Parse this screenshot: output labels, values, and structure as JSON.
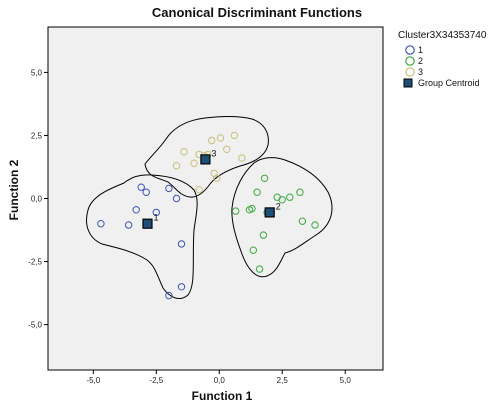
{
  "chart_data": {
    "type": "scatter",
    "title": "Canonical Discriminant Functions",
    "xlabel": "Function 1",
    "ylabel": "Function 2",
    "xlim": [
      -6.8,
      6.5
    ],
    "ylim": [
      -6.8,
      6.8
    ],
    "xticks": [
      -5,
      -2.5,
      0,
      2.5,
      5
    ],
    "yticks": [
      -5,
      -2.5,
      0,
      2.5,
      5
    ],
    "xtick_labels": [
      "-5,0",
      "-2,5",
      "0,0",
      "2,5",
      "5,0"
    ],
    "ytick_labels": [
      "-5,0",
      "-2,5",
      "0,0",
      "2,5",
      "5,0"
    ],
    "grid": false,
    "legend_position": "outside-right",
    "legend_title": "Cluster3X34353740",
    "plot_background": "#f0f0f0",
    "series": [
      {
        "name": "1",
        "color": "#3e55b8",
        "marker": "open-circle",
        "points": [
          [
            -4.7,
            -1.0
          ],
          [
            -3.6,
            -1.05
          ],
          [
            -3.3,
            -0.45
          ],
          [
            -3.1,
            0.45
          ],
          [
            -2.9,
            0.25
          ],
          [
            -2.5,
            -0.55
          ],
          [
            -2.0,
            0.4
          ],
          [
            -1.7,
            0.0
          ],
          [
            -1.5,
            -1.8
          ],
          [
            -1.5,
            -3.5
          ],
          [
            -2.0,
            -3.85
          ]
        ]
      },
      {
        "name": "2",
        "color": "#3daa3d",
        "marker": "open-circle",
        "points": [
          [
            0.65,
            -0.5
          ],
          [
            1.2,
            -0.45
          ],
          [
            1.3,
            -0.4
          ],
          [
            1.5,
            0.25
          ],
          [
            1.8,
            0.8
          ],
          [
            1.9,
            -0.55
          ],
          [
            2.3,
            0.05
          ],
          [
            2.5,
            -0.05
          ],
          [
            2.8,
            0.05
          ],
          [
            3.2,
            0.25
          ],
          [
            3.3,
            -0.9
          ],
          [
            3.8,
            -1.05
          ],
          [
            1.75,
            -1.45
          ],
          [
            1.35,
            -2.05
          ],
          [
            1.6,
            -2.8
          ]
        ]
      },
      {
        "name": "3",
        "color": "#c8c07a",
        "marker": "open-circle",
        "points": [
          [
            -1.7,
            1.3
          ],
          [
            -1.4,
            1.85
          ],
          [
            -1.0,
            1.4
          ],
          [
            -0.8,
            1.75
          ],
          [
            -0.6,
            1.7
          ],
          [
            -0.45,
            1.75
          ],
          [
            -0.3,
            2.3
          ],
          [
            -0.2,
            1.0
          ],
          [
            -0.1,
            0.8
          ],
          [
            0.05,
            2.4
          ],
          [
            0.3,
            1.95
          ],
          [
            0.6,
            2.5
          ],
          [
            0.9,
            1.6
          ],
          [
            -0.8,
            0.35
          ]
        ]
      }
    ],
    "centroids": {
      "name": "Group Centroid",
      "color": "#1f4e79",
      "marker": "filled-square",
      "points": [
        {
          "label": "1",
          "x": -2.85,
          "y": -1.0
        },
        {
          "label": "2",
          "x": 2.0,
          "y": -0.55
        },
        {
          "label": "3",
          "x": -0.55,
          "y": 1.55
        }
      ]
    },
    "legend": [
      {
        "label": "1",
        "marker": "open-circle",
        "color": "#3e55b8"
      },
      {
        "label": "2",
        "marker": "open-circle",
        "color": "#3daa3d"
      },
      {
        "label": "3",
        "marker": "open-circle",
        "color": "#c8c07a"
      },
      {
        "label": "Group Centroid",
        "marker": "filled-square",
        "color": "#1f4e79"
      }
    ]
  }
}
